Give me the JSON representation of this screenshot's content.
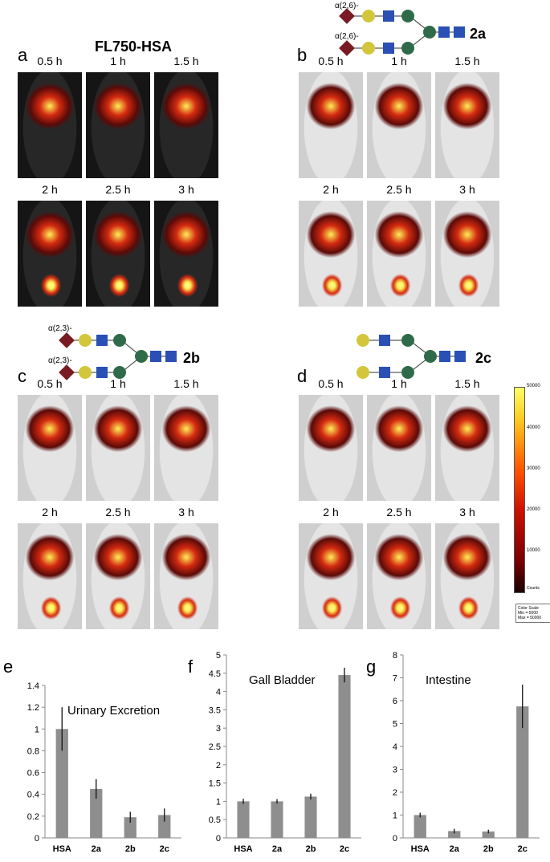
{
  "panels": {
    "a": {
      "letter": "a",
      "title": "FL750-HSA",
      "times_top": [
        "0.5 h",
        "1 h",
        "1.5 h"
      ],
      "times_bottom": [
        "2 h",
        "2.5 h",
        "3 h"
      ]
    },
    "b": {
      "letter": "b",
      "compound": "2a",
      "linkage": [
        "α(2,6)-",
        "α(2,6)-"
      ],
      "times_top": [
        "0.5 h",
        "1 h",
        "1.5 h"
      ],
      "times_bottom": [
        "2 h",
        "2.5 h",
        "3 h"
      ]
    },
    "c": {
      "letter": "c",
      "compound": "2b",
      "linkage": [
        "α(2,3)-",
        "α(2,3)-"
      ],
      "times_top": [
        "0.5 h",
        "1 h",
        "1.5 h"
      ],
      "times_bottom": [
        "2 h",
        "2.5 h",
        "3 h"
      ]
    },
    "d": {
      "letter": "d",
      "compound": "2c",
      "times_top": [
        "0.5 h",
        "1 h",
        "1.5 h"
      ],
      "times_bottom": [
        "2 h",
        "2.5 h",
        "3 h"
      ]
    }
  },
  "colorbar": {
    "ticks": [
      "50000",
      "40000",
      "30000",
      "20000",
      "10000"
    ],
    "unit": "Counts",
    "box": [
      "Color Scale",
      "Min = 5000",
      "Max = 50000"
    ]
  },
  "colors": {
    "sialic": "#7a1a22",
    "galactose": "#d4c63a",
    "glcnac": "#2a4fb5",
    "mannose": "#2f6b4a",
    "bar": "#8e8e8e",
    "heat_hot": "#ffee55",
    "heat_mid": "#d42a10",
    "heat_low": "#5a0a08"
  },
  "chart_data": [
    {
      "panel": "e",
      "type": "bar",
      "title": "Urinary Excretion",
      "categories": [
        "HSA",
        "2a",
        "2b",
        "2c"
      ],
      "values": [
        1.0,
        0.45,
        0.19,
        0.21
      ],
      "errors": [
        0.2,
        0.09,
        0.05,
        0.06
      ],
      "ylim": [
        0,
        1.4
      ],
      "yticks": [
        "0",
        "0.2",
        "0.4",
        "0.6",
        "0.8",
        "1",
        "1.2",
        "1.4"
      ]
    },
    {
      "panel": "f",
      "type": "bar",
      "title": "Gall Bladder",
      "categories": [
        "HSA",
        "2a",
        "2b",
        "2c"
      ],
      "values": [
        1.0,
        1.0,
        1.13,
        4.45
      ],
      "errors": [
        0.07,
        0.06,
        0.08,
        0.2
      ],
      "ylim": [
        0,
        5
      ],
      "yticks": [
        "0",
        "0.5",
        "1",
        "1.5",
        "2",
        "2.5",
        "3",
        "3.5",
        "4",
        "4.5",
        "5"
      ]
    },
    {
      "panel": "g",
      "type": "bar",
      "title": "Intestine",
      "categories": [
        "HSA",
        "2a",
        "2b",
        "2c"
      ],
      "values": [
        1.0,
        0.3,
        0.28,
        5.75
      ],
      "errors": [
        0.1,
        0.1,
        0.08,
        0.95
      ],
      "ylim": [
        0,
        8
      ],
      "yticks": [
        "0",
        "1",
        "2",
        "3",
        "4",
        "5",
        "6",
        "7",
        "8"
      ]
    }
  ]
}
